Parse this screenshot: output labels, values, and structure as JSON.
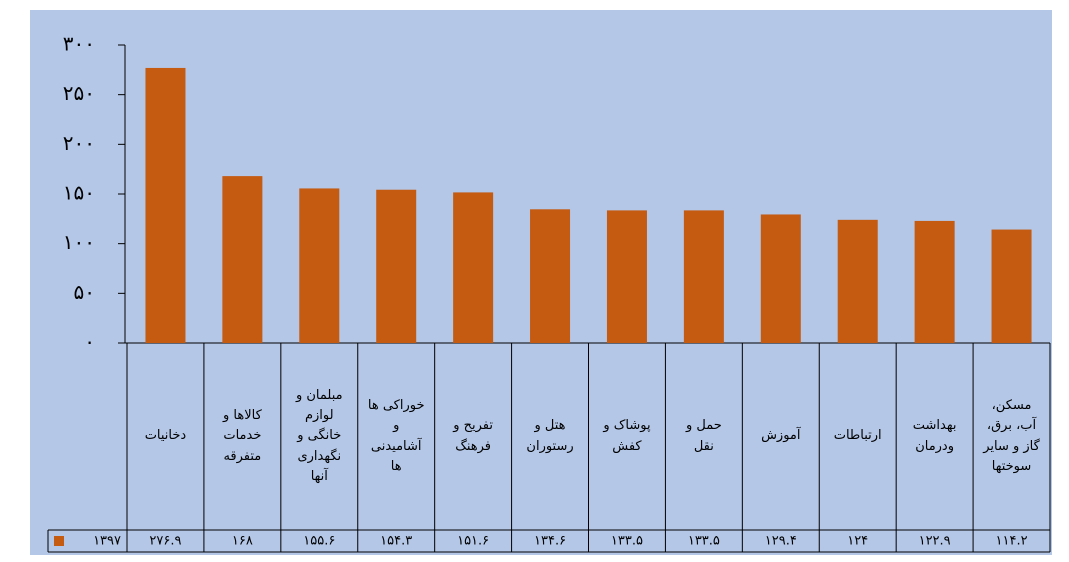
{
  "chart_data": {
    "type": "bar",
    "categories": [
      "دخانیات",
      "کالاها و\nخدمات\nمتفرقه",
      "مبلمان و\nلوازم\nخانگی و\nنگهداری\nآنها",
      "خوراکی ها\nو\nآشامیدنی\nها",
      "تفریح و\nفرهنگ",
      "هتل و\nرستوران",
      "پوشاک و\nکفش",
      "حمل و\nنقل",
      "آموزش",
      "ارتباطات",
      "بهداشت\nودرمان",
      "مسکن،\nآب، برق،\nگاز و سایر\nسوختها"
    ],
    "series": [
      {
        "name": "۱۳۹۷",
        "color": "#c55a11",
        "values": [
          276.9,
          168,
          155.6,
          154.3,
          151.6,
          134.6,
          133.5,
          133.5,
          129.4,
          124,
          122.9,
          114.2
        ],
        "value_labels": [
          "۲۷۶.۹",
          "۱۶۸",
          "۱۵۵.۶",
          "۱۵۴.۳",
          "۱۵۱.۶",
          "۱۳۴.۶",
          "۱۳۳.۵",
          "۱۳۳.۵",
          "۱۲۹.۴",
          "۱۲۴",
          "۱۲۲.۹",
          "۱۱۴.۲"
        ]
      }
    ],
    "ylim": [
      0,
      300
    ],
    "yticks": [
      {
        "value": 0,
        "label": "۰"
      },
      {
        "value": 50,
        "label": "۵۰"
      },
      {
        "value": 100,
        "label": "۱۰۰"
      },
      {
        "value": 150,
        "label": "۱۵۰"
      },
      {
        "value": 200,
        "label": "۲۰۰"
      },
      {
        "value": 250,
        "label": "۲۵۰"
      },
      {
        "value": 300,
        "label": "۳۰۰"
      }
    ]
  }
}
